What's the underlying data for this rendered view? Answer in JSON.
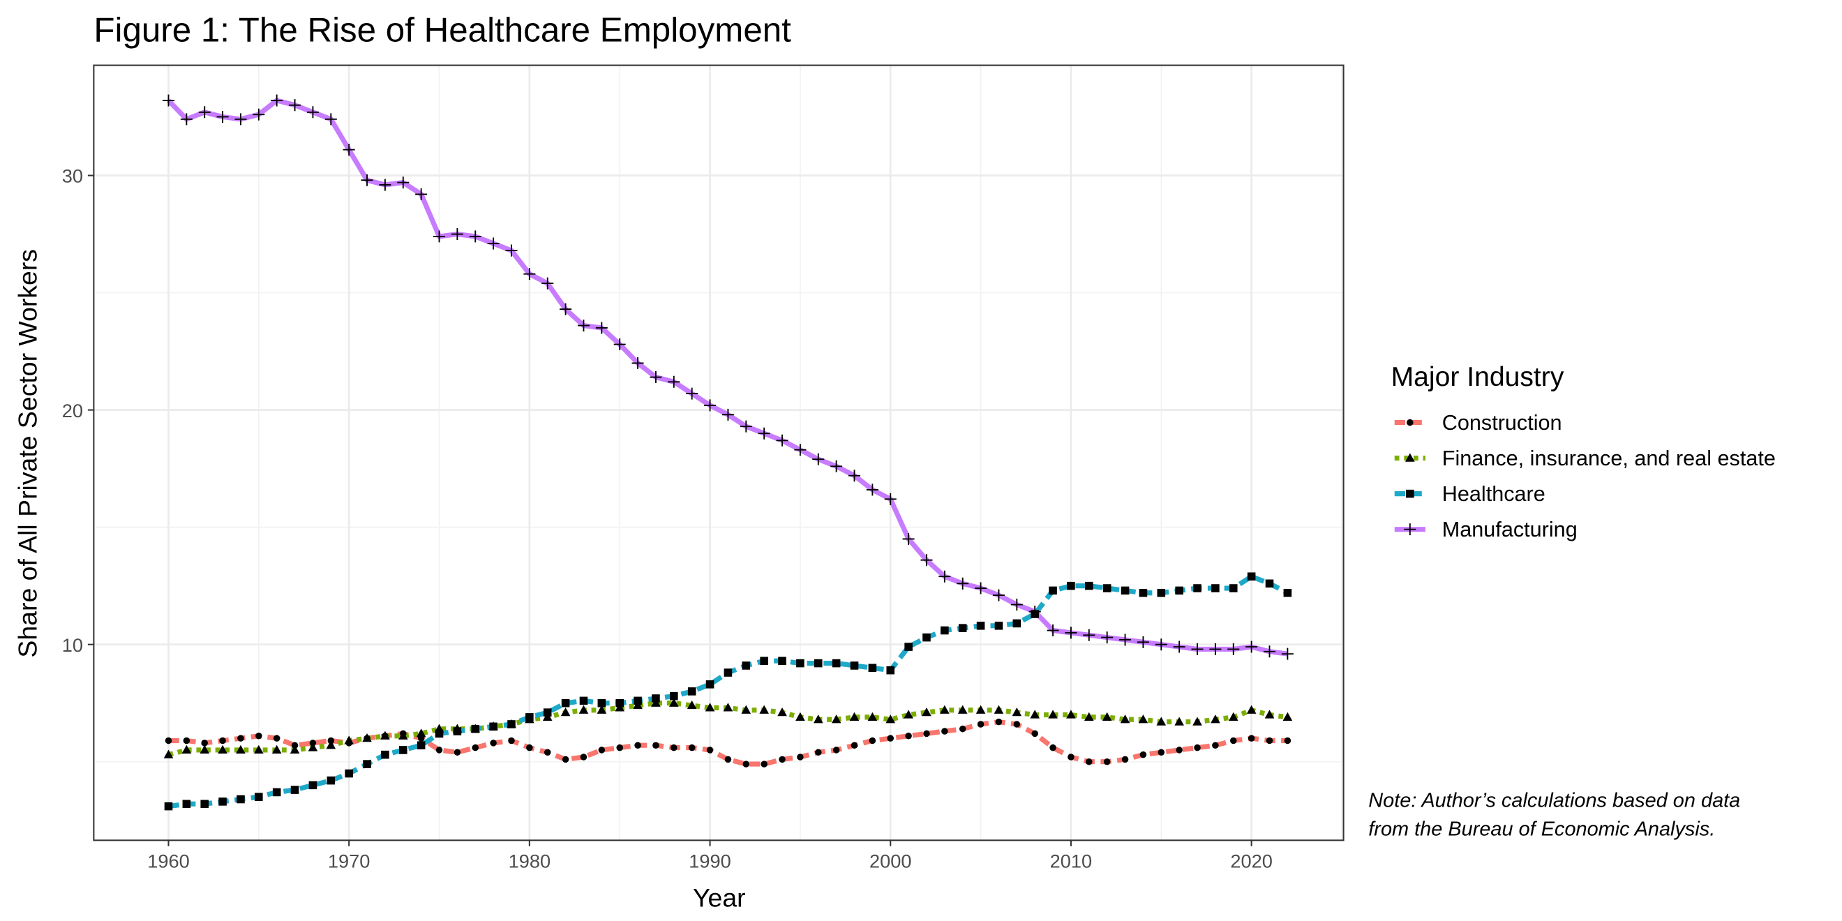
{
  "chart_data": {
    "type": "line",
    "title": "Figure 1: The Rise of Healthcare Employment",
    "x_label": "Year",
    "y_label": "Share of All Private Sector Workers",
    "legend_title": "Major Industry",
    "legend_position": "right",
    "grid": true,
    "note": [
      "Note: Author’s calculations based on data",
      "from the Bureau of Economic Analysis."
    ],
    "xlim": [
      1955.86,
      2025.1
    ],
    "ylim": [
      1.65,
      34.7
    ],
    "xticks": [
      1960,
      1970,
      1980,
      1990,
      2000,
      2010,
      2020
    ],
    "yticks": [
      10,
      20,
      30
    ],
    "xticks_minor": [
      1965,
      1975,
      1985,
      1995,
      2005,
      2015,
      2025
    ],
    "yticks_minor": [
      5,
      15,
      25
    ],
    "x": [
      1960,
      1961,
      1962,
      1963,
      1964,
      1965,
      1966,
      1967,
      1968,
      1969,
      1970,
      1971,
      1972,
      1973,
      1974,
      1975,
      1976,
      1977,
      1978,
      1979,
      1980,
      1981,
      1982,
      1983,
      1984,
      1985,
      1986,
      1987,
      1988,
      1989,
      1990,
      1991,
      1992,
      1993,
      1994,
      1995,
      1996,
      1997,
      1998,
      1999,
      2000,
      2001,
      2002,
      2003,
      2004,
      2005,
      2006,
      2007,
      2008,
      2009,
      2010,
      2011,
      2012,
      2013,
      2014,
      2015,
      2016,
      2017,
      2018,
      2019,
      2020,
      2021,
      2022
    ],
    "series": [
      {
        "name": "Construction",
        "color": "#F8766D",
        "linestyle": "dashed",
        "marker": "circle",
        "values": [
          5.9,
          5.9,
          5.8,
          5.9,
          6.0,
          6.1,
          6.0,
          5.7,
          5.8,
          5.9,
          5.8,
          6.0,
          6.1,
          6.2,
          6.0,
          5.5,
          5.4,
          5.6,
          5.8,
          5.9,
          5.6,
          5.4,
          5.1,
          5.2,
          5.5,
          5.6,
          5.7,
          5.7,
          5.6,
          5.6,
          5.5,
          5.1,
          4.9,
          4.9,
          5.1,
          5.2,
          5.4,
          5.5,
          5.7,
          5.9,
          6.0,
          6.1,
          6.2,
          6.3,
          6.4,
          6.6,
          6.7,
          6.6,
          6.2,
          5.6,
          5.2,
          5.0,
          5.0,
          5.1,
          5.3,
          5.4,
          5.5,
          5.6,
          5.7,
          5.9,
          6.0,
          5.9,
          5.9
        ]
      },
      {
        "name": "Finance, insurance, and real estate",
        "color": "#7CAE00",
        "linestyle": "dotted",
        "marker": "triangle",
        "values": [
          5.3,
          5.5,
          5.5,
          5.5,
          5.5,
          5.5,
          5.5,
          5.5,
          5.6,
          5.7,
          5.9,
          6.0,
          6.1,
          6.1,
          6.2,
          6.4,
          6.4,
          6.4,
          6.5,
          6.6,
          6.8,
          6.9,
          7.1,
          7.2,
          7.2,
          7.3,
          7.4,
          7.5,
          7.5,
          7.4,
          7.3,
          7.3,
          7.2,
          7.2,
          7.1,
          6.9,
          6.8,
          6.8,
          6.9,
          6.9,
          6.8,
          7.0,
          7.1,
          7.2,
          7.2,
          7.2,
          7.2,
          7.1,
          7.0,
          7.0,
          7.0,
          6.9,
          6.9,
          6.8,
          6.8,
          6.7,
          6.7,
          6.7,
          6.8,
          6.9,
          7.2,
          7.0,
          6.9
        ]
      },
      {
        "name": "Healthcare",
        "color": "#1FA9C9",
        "linestyle": "dashed",
        "marker": "square",
        "values": [
          3.1,
          3.2,
          3.2,
          3.3,
          3.4,
          3.5,
          3.7,
          3.8,
          4.0,
          4.2,
          4.5,
          4.9,
          5.3,
          5.5,
          5.7,
          6.2,
          6.3,
          6.4,
          6.5,
          6.6,
          6.9,
          7.1,
          7.5,
          7.6,
          7.5,
          7.5,
          7.6,
          7.7,
          7.8,
          8.0,
          8.3,
          8.8,
          9.1,
          9.3,
          9.3,
          9.2,
          9.2,
          9.2,
          9.1,
          9.0,
          8.9,
          9.9,
          10.3,
          10.6,
          10.7,
          10.8,
          10.8,
          10.9,
          11.3,
          12.3,
          12.5,
          12.5,
          12.4,
          12.3,
          12.2,
          12.2,
          12.3,
          12.4,
          12.4,
          12.4,
          12.9,
          12.6,
          12.2
        ]
      },
      {
        "name": "Manufacturing",
        "color": "#C77CFF",
        "linestyle": "solid",
        "marker": "plus",
        "values": [
          33.2,
          32.4,
          32.7,
          32.5,
          32.4,
          32.6,
          33.2,
          33.0,
          32.7,
          32.4,
          31.1,
          29.8,
          29.6,
          29.7,
          29.2,
          27.4,
          27.5,
          27.4,
          27.1,
          26.8,
          25.8,
          25.4,
          24.3,
          23.6,
          23.5,
          22.8,
          22.0,
          21.4,
          21.2,
          20.7,
          20.2,
          19.8,
          19.3,
          19.0,
          18.7,
          18.3,
          17.9,
          17.6,
          17.2,
          16.6,
          16.2,
          14.5,
          13.6,
          12.9,
          12.6,
          12.4,
          12.1,
          11.7,
          11.4,
          10.6,
          10.5,
          10.4,
          10.3,
          10.2,
          10.1,
          10.0,
          9.9,
          9.8,
          9.8,
          9.8,
          9.9,
          9.7,
          9.6
        ]
      }
    ]
  }
}
